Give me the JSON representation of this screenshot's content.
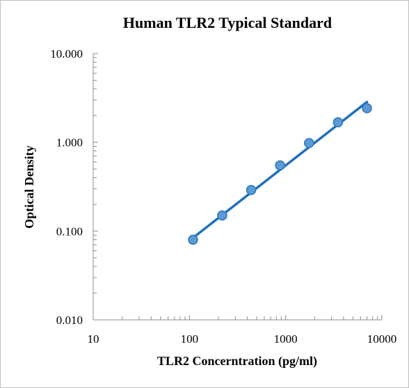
{
  "chart_data": {
    "type": "scatter",
    "title": "Human TLR2 Typical Standard",
    "xlabel": "TLR2 Concerntration (pg/ml)",
    "ylabel": "Optical Density",
    "x_scale": "log",
    "y_scale": "log",
    "xlim": [
      10,
      10000
    ],
    "ylim": [
      0.01,
      10
    ],
    "x_ticks": [
      "10",
      "100",
      "1000",
      "10000"
    ],
    "y_ticks": [
      "0.010",
      "0.100",
      "1.000",
      "10.000"
    ],
    "grid": false,
    "legend": "none",
    "series": [
      {
        "x": [
          109,
          219,
          438,
          875,
          1750,
          3500,
          7000
        ],
        "y": [
          0.08,
          0.15,
          0.29,
          0.55,
          0.98,
          1.68,
          2.42
        ],
        "marker_color": "#5b9bd5",
        "marker_edge": "#2e75b6"
      }
    ],
    "trendline": {
      "x": [
        109,
        7000
      ],
      "y": [
        0.084,
        2.85
      ],
      "color": "#1f70c1"
    }
  }
}
